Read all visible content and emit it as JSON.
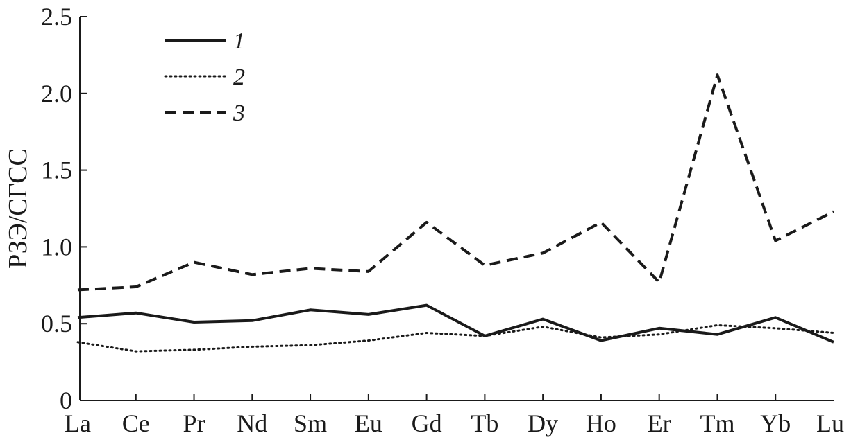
{
  "chart_data": {
    "type": "line",
    "title": "",
    "xlabel": "",
    "ylabel": "РЗЭ/СГСС",
    "categories": [
      "La",
      "Ce",
      "Pr",
      "Nd",
      "Sm",
      "Eu",
      "Gd",
      "Tb",
      "Dy",
      "Ho",
      "Er",
      "Tm",
      "Yb",
      "Lu"
    ],
    "ylim": [
      0,
      2.5
    ],
    "yticks": [
      "0",
      "0.5",
      "1.0",
      "1.5",
      "2.0",
      "2.5"
    ],
    "ytick_values": [
      0,
      0.5,
      1.0,
      1.5,
      2.0,
      2.5
    ],
    "grid": false,
    "legend_position": "top-left",
    "series": [
      {
        "name": "1",
        "style": "solid",
        "values": [
          0.54,
          0.57,
          0.51,
          0.52,
          0.59,
          0.56,
          0.62,
          0.42,
          0.53,
          0.39,
          0.47,
          0.43,
          0.54,
          0.38
        ]
      },
      {
        "name": "2",
        "style": "dotted",
        "values": [
          0.38,
          0.32,
          0.33,
          0.35,
          0.36,
          0.39,
          0.44,
          0.42,
          0.48,
          0.41,
          0.43,
          0.49,
          0.47,
          0.44
        ]
      },
      {
        "name": "3",
        "style": "dashed",
        "values": [
          0.72,
          0.74,
          0.9,
          0.82,
          0.86,
          0.84,
          1.16,
          0.88,
          0.96,
          1.16,
          0.77,
          2.12,
          1.04,
          1.23
        ]
      }
    ]
  }
}
